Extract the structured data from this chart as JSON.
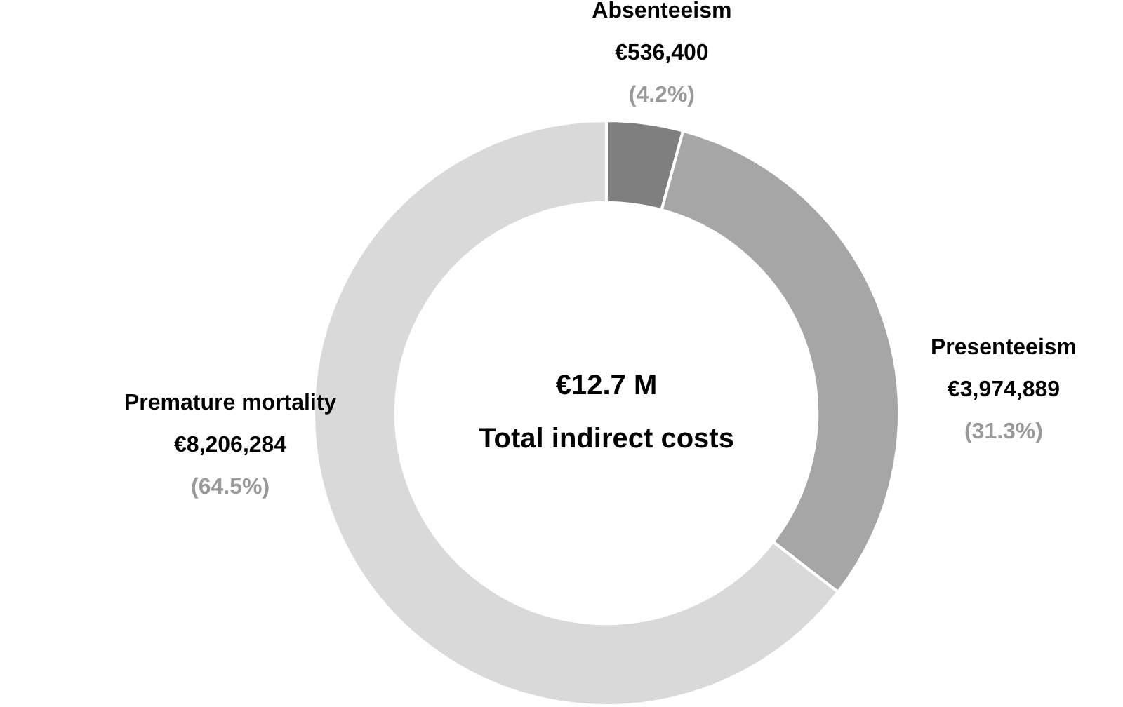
{
  "chart_data": {
    "type": "donut",
    "categories": [
      "Absenteeism",
      "Presenteeism",
      "Premature mortality"
    ],
    "values": [
      536400,
      3974889,
      8206284
    ],
    "colors": [
      "#7f7f7f",
      "#a6a6a6",
      "#d9d9d9"
    ],
    "value_labels": [
      "€536,400",
      "€3,974,889",
      "€8,206,284"
    ],
    "annotations": [
      {
        "text": "(4.2%)",
        "x": "Absenteeism"
      },
      {
        "text": "(31.3%)",
        "x": "Presenteeism"
      },
      {
        "text": "(64.5%)",
        "x": "Premature mortality"
      },
      "€12.7 M",
      "Total indirect costs"
    ],
    "legend": false
  }
}
